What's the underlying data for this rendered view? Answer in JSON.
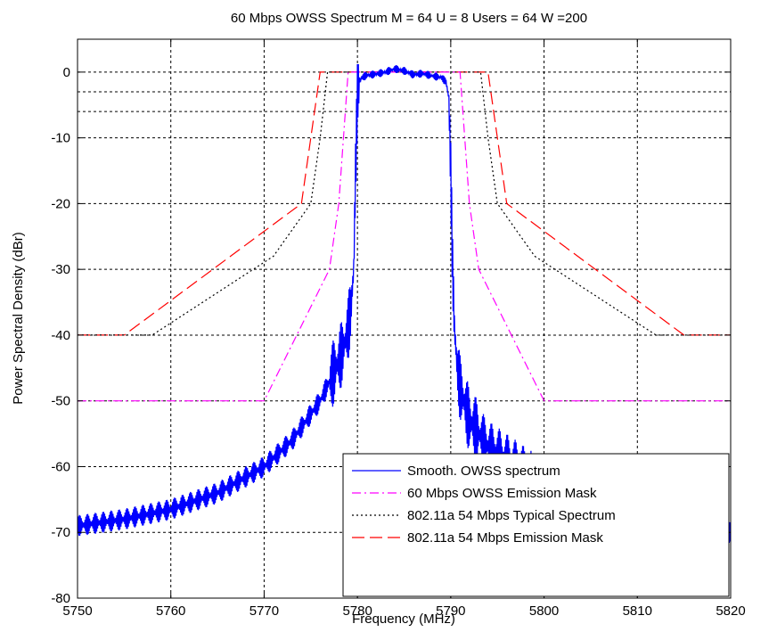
{
  "chart_data": {
    "type": "line",
    "title": "60 Mbps OWSS Spectrum M = 64 U = 8 Users = 64 W =200",
    "xlabel": "Frequency (MHz)",
    "ylabel": "Power Spectral Density (dBr)",
    "xlim": [
      5750,
      5820
    ],
    "ylim": [
      -80,
      5
    ],
    "xticks": [
      5750,
      5760,
      5770,
      5780,
      5790,
      5800,
      5810,
      5820
    ],
    "yticks": [
      0,
      -10,
      -20,
      -30,
      -40,
      -50,
      -60,
      -70,
      -80
    ],
    "xtick_labels": [
      "5750",
      "5760",
      "5770",
      "5780",
      "5790",
      "5800",
      "5810",
      "5820"
    ],
    "ytick_labels": [
      "0",
      "-10",
      "-20",
      "-30",
      "-40",
      "-50",
      "-60",
      "-70",
      "-80"
    ],
    "grid": true,
    "extra_grid_y": [
      -3,
      -6
    ],
    "legend_position": "bottom-right",
    "series": [
      {
        "name": "Smooth. OWSS spectrum",
        "color": "#0000ff",
        "style": "solid",
        "x": [
          5750,
          5755,
          5760,
          5765,
          5770,
          5773,
          5775,
          5776,
          5777,
          5778,
          5778.5,
          5779,
          5779.3,
          5779.6,
          5779.8,
          5780,
          5780.2,
          5780.5,
          5781,
          5782,
          5783,
          5784,
          5785,
          5786,
          5787,
          5788,
          5789,
          5789.5,
          5789.8,
          5790,
          5790.2,
          5790.4,
          5790.7,
          5791,
          5792,
          5794,
          5796,
          5798,
          5800,
          5805,
          5810,
          5815,
          5820
        ],
        "y": [
          -69,
          -68,
          -66.5,
          -64,
          -60,
          -56,
          -52,
          -50,
          -47,
          -44,
          -42,
          -39,
          -36,
          -30,
          -15,
          -3,
          -1.5,
          -0.8,
          -0.5,
          -0.3,
          0,
          0.5,
          0.2,
          -0.4,
          -0.2,
          -0.6,
          -0.8,
          -1.5,
          -4,
          -15,
          -30,
          -39,
          -45,
          -48,
          -53,
          -57,
          -59,
          -61,
          -63,
          -66,
          -69,
          -70,
          -70
        ]
      },
      {
        "name": "60 Mbps OWSS Emission Mask",
        "color": "#ff00ff",
        "style": "dashdot",
        "x": [
          5750,
          5770,
          5777,
          5778,
          5779,
          5791,
          5792,
          5793,
          5800,
          5820
        ],
        "y": [
          -50,
          -50,
          -30,
          -20,
          0,
          0,
          -20,
          -30,
          -50,
          -50
        ]
      },
      {
        "name": "802.11a 54 Mbps Typical Spectrum",
        "color": "#000000",
        "style": "dotted",
        "x": [
          5750,
          5758,
          5771,
          5775,
          5776,
          5776.8,
          5793.2,
          5794,
          5795,
          5799,
          5812,
          5820
        ],
        "y": [
          -40,
          -40,
          -28,
          -20,
          -10,
          0,
          0,
          -10,
          -20,
          -28,
          -40,
          -40
        ]
      },
      {
        "name": "802.11a 54 Mbps Emission Mask",
        "color": "#ff0000",
        "style": "dashed",
        "x": [
          5750,
          5755,
          5774,
          5776,
          5794,
          5796,
          5815,
          5820
        ],
        "y": [
          -40,
          -40,
          -20,
          0,
          0,
          -20,
          -40,
          -40
        ]
      }
    ]
  }
}
